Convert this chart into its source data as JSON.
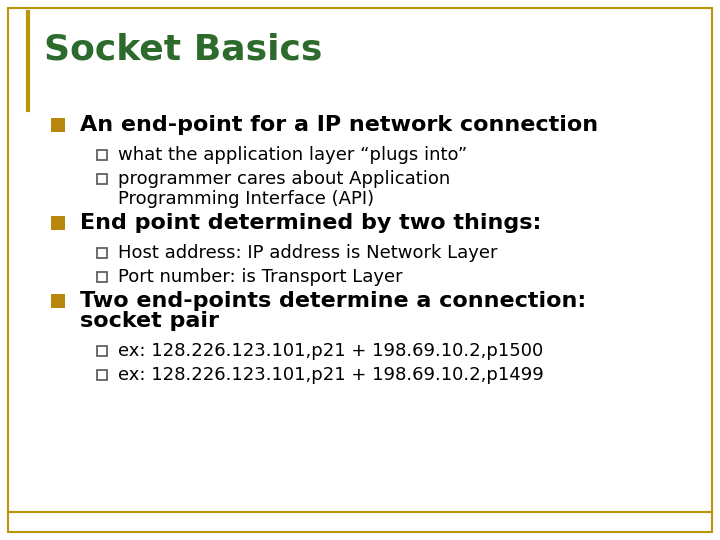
{
  "title": "Socket Basics",
  "title_color": "#2d6b2d",
  "bg_color": "#ffffff",
  "border_color": "#b8960b",
  "bullet_color": "#b8860b",
  "text_color": "#000000",
  "title_fontsize": 26,
  "bullet_fontsize": 16,
  "sub_fontsize": 13,
  "items": [
    {
      "level": 1,
      "lines": [
        "An end-point for a IP network connection"
      ]
    },
    {
      "level": 2,
      "lines": [
        "what the application layer “plugs into”"
      ]
    },
    {
      "level": 2,
      "lines": [
        "programmer cares about Application",
        "Programming Interface (API)"
      ]
    },
    {
      "level": 1,
      "lines": [
        "End point determined by two things:"
      ]
    },
    {
      "level": 2,
      "lines": [
        "Host address: IP address is Network Layer"
      ]
    },
    {
      "level": 2,
      "lines": [
        "Port number: is Transport Layer"
      ]
    },
    {
      "level": 1,
      "lines": [
        "Two end-points determine a connection:",
        "socket pair"
      ]
    },
    {
      "level": 2,
      "lines": [
        "ex: 128.226.123.101,p21 + 198.69.10.2,p1500"
      ]
    },
    {
      "level": 2,
      "lines": [
        "ex: 128.226.123.101,p21 + 198.69.10.2,p1499"
      ]
    }
  ]
}
